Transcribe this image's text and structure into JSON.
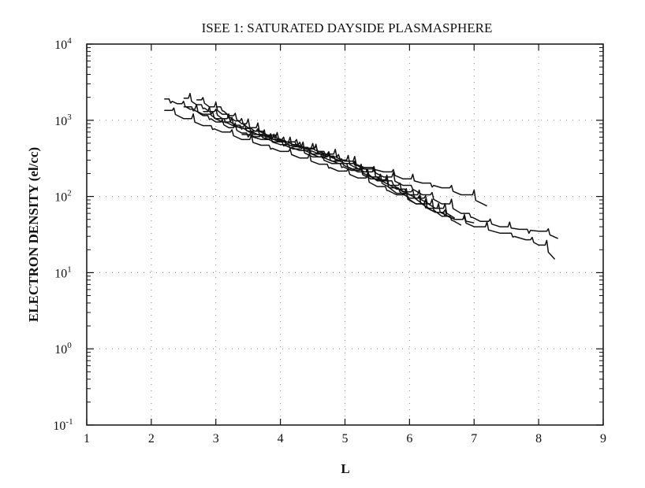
{
  "chart_data": {
    "type": "line",
    "title": "ISEE 1: SATURATED DAYSIDE PLASMASPHERE",
    "xlabel": "L",
    "ylabel": "ELECTRON DENSITY (el/cc)",
    "xlim": [
      1,
      9
    ],
    "ylim": [
      0.1,
      10000
    ],
    "yscale": "log",
    "grid": true,
    "grid_style": "dotted",
    "x_ticks": [
      "1",
      "2",
      "3",
      "4",
      "5",
      "6",
      "7",
      "8",
      "9"
    ],
    "y_ticks": [
      {
        "base": "10",
        "exp": "-1",
        "value": 0.1
      },
      {
        "base": "10",
        "exp": "0",
        "value": 1
      },
      {
        "base": "10",
        "exp": "1",
        "value": 10
      },
      {
        "base": "10",
        "exp": "2",
        "value": 100
      },
      {
        "base": "10",
        "exp": "3",
        "value": 1000
      },
      {
        "base": "10",
        "exp": "4",
        "value": 10000
      }
    ],
    "series": [
      {
        "x": [
          2.2,
          2.4,
          2.6,
          2.8,
          3.0,
          3.2,
          3.4,
          3.6,
          3.8,
          4.0,
          4.2,
          4.4,
          4.6,
          4.8,
          5.0,
          5.3,
          5.6,
          5.9,
          6.2,
          6.5,
          6.8,
          7.2
        ],
        "y": [
          1900,
          1650,
          1400,
          1150,
          950,
          800,
          680,
          610,
          570,
          540,
          480,
          430,
          390,
          330,
          290,
          240,
          210,
          170,
          150,
          130,
          105,
          75
        ]
      },
      {
        "x": [
          2.2,
          2.5,
          2.8,
          3.1,
          3.4,
          3.7,
          4.0,
          4.3,
          4.6,
          4.9,
          5.2,
          5.5,
          5.8,
          6.1,
          6.4,
          6.7,
          7.0,
          7.4,
          7.8,
          8.0,
          8.25
        ],
        "y": [
          1350,
          1050,
          850,
          700,
          560,
          470,
          390,
          320,
          265,
          215,
          175,
          135,
          105,
          80,
          62,
          50,
          40,
          33,
          27,
          23,
          15
        ]
      },
      {
        "x": [
          2.5,
          2.7,
          2.9,
          3.1,
          3.3,
          3.5,
          3.8,
          4.1,
          4.4,
          4.7,
          5.0,
          5.3,
          5.6,
          5.9,
          6.2,
          6.5,
          6.8,
          7.1,
          7.4,
          7.7,
          8.0,
          8.3
        ],
        "y": [
          1950,
          1600,
          1300,
          1050,
          860,
          720,
          600,
          520,
          430,
          360,
          290,
          230,
          180,
          140,
          105,
          80,
          60,
          47,
          40,
          37,
          35,
          28
        ]
      },
      {
        "x": [
          2.5,
          2.8,
          3.1,
          3.4,
          3.7,
          4.0,
          4.3,
          4.6,
          4.9,
          5.2,
          5.5,
          5.8,
          6.1,
          6.4,
          6.7,
          7.0
        ],
        "y": [
          1500,
          1200,
          950,
          780,
          620,
          520,
          440,
          360,
          300,
          230,
          160,
          110,
          80,
          62,
          50,
          45
        ]
      },
      {
        "x": [
          2.7,
          2.9,
          3.1,
          3.3,
          3.5,
          3.8,
          4.1,
          4.4,
          4.7,
          5.0,
          5.3,
          5.6,
          5.9,
          6.2,
          6.5,
          6.8
        ],
        "y": [
          1850,
          1500,
          1200,
          980,
          800,
          640,
          520,
          420,
          340,
          270,
          210,
          160,
          115,
          80,
          55,
          42
        ]
      },
      {
        "x": [
          2.8,
          3.0,
          3.3,
          3.6,
          3.9,
          4.2,
          4.5,
          4.8,
          5.1,
          5.4,
          5.7,
          6.0,
          6.3,
          6.6
        ],
        "y": [
          1300,
          1050,
          820,
          650,
          520,
          420,
          330,
          270,
          220,
          170,
          130,
          95,
          70,
          55
        ]
      },
      {
        "x": [
          3.0,
          3.2,
          3.4,
          3.6,
          3.9,
          4.2,
          4.5,
          4.8,
          5.1,
          5.4,
          5.7,
          6.0,
          6.3
        ],
        "y": [
          1500,
          1150,
          900,
          720,
          560,
          450,
          360,
          290,
          230,
          180,
          140,
          105,
          80
        ]
      },
      {
        "x": [
          3.4,
          3.7,
          4.0,
          4.3,
          4.6,
          4.9,
          5.2,
          5.5,
          5.8,
          6.1,
          6.4,
          6.7
        ],
        "y": [
          650,
          560,
          480,
          400,
          330,
          270,
          210,
          165,
          125,
          95,
          70,
          52
        ]
      }
    ]
  }
}
